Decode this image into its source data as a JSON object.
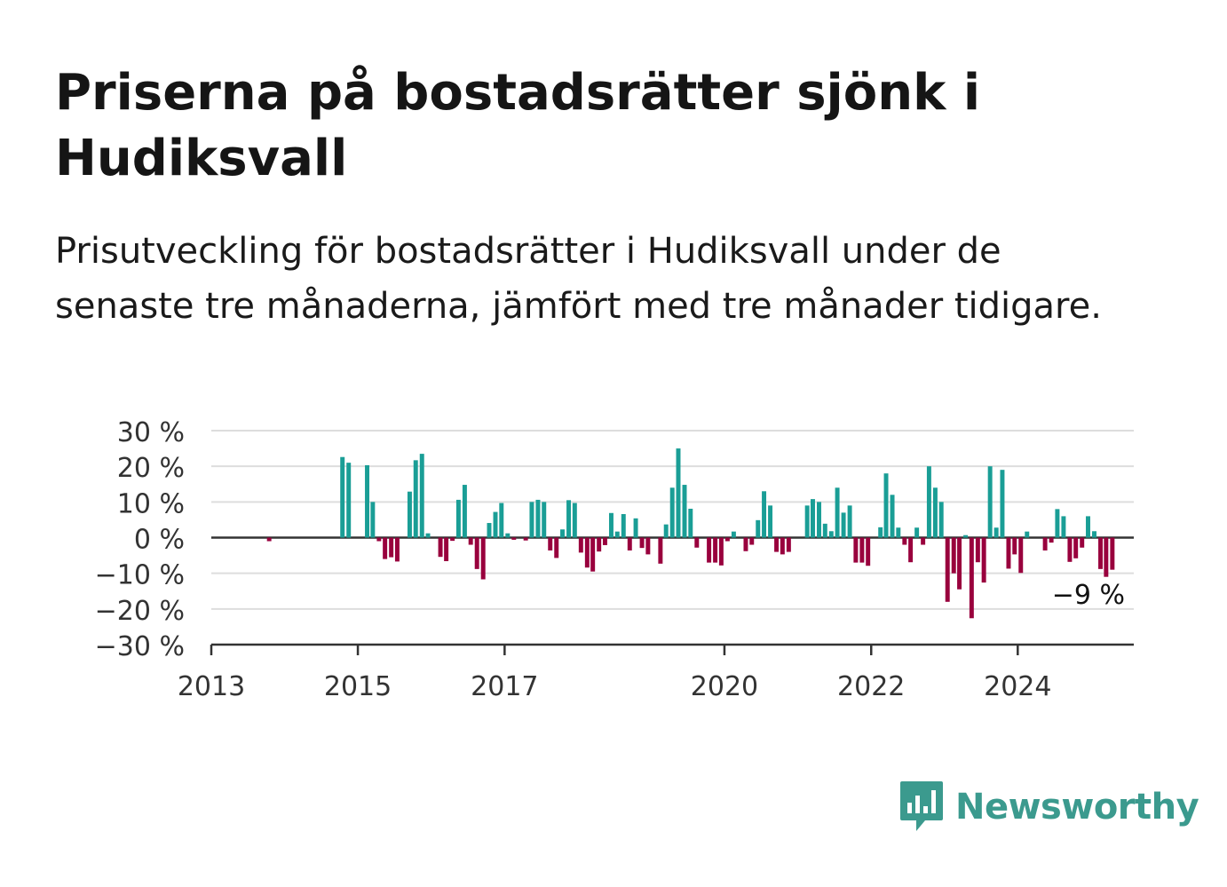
{
  "title": "Priserna på bostadsrätter sjönk i Hudiksvall",
  "subtitle": "Prisutveckling för bostadsrätter i Hudiksvall under de senaste tre månaderna, jämfört med tre månader tidigare.",
  "brand": {
    "name": "Newsworthy",
    "icon": "newsworthy-logo-icon",
    "color": "#3b9a8e"
  },
  "colors": {
    "positive": "#1a9e96",
    "negative": "#99003d",
    "grid": "#dddddd",
    "axis": "#333333"
  },
  "chart_data": {
    "type": "bar",
    "x_unit": "date (year-month)",
    "ylim": [
      -30,
      30
    ],
    "yticks": [
      30,
      20,
      10,
      0,
      -10,
      -20,
      -30
    ],
    "ytick_labels": [
      "30 %",
      "20 %",
      "10 %",
      "0 %",
      "−10 %",
      "−20 %",
      "−30 %"
    ],
    "xticks": [
      "2013",
      "2015",
      "2017",
      "2020",
      "2022",
      "2024"
    ],
    "grid": true,
    "legend": "none",
    "annotation": {
      "x": "2024-12",
      "label": "−9 %"
    },
    "x": [
      "2013-01",
      "2013-02",
      "2013-03",
      "2013-04",
      "2013-05",
      "2013-06",
      "2013-07",
      "2013-08",
      "2013-09",
      "2013-10",
      "2013-11",
      "2013-12",
      "2014-01",
      "2014-02",
      "2014-03",
      "2014-04",
      "2014-05",
      "2014-06",
      "2014-07",
      "2014-08",
      "2014-09",
      "2014-10",
      "2014-11",
      "2014-12",
      "2015-01",
      "2015-02",
      "2015-03",
      "2015-04",
      "2015-05",
      "2015-06",
      "2015-07",
      "2015-08",
      "2015-09",
      "2015-10",
      "2015-11",
      "2015-12",
      "2016-01",
      "2016-02",
      "2016-03",
      "2016-04",
      "2016-05",
      "2016-06",
      "2016-07",
      "2016-08",
      "2016-09",
      "2016-10",
      "2016-11",
      "2016-12",
      "2017-01",
      "2017-02",
      "2017-03",
      "2017-04",
      "2017-05",
      "2017-06",
      "2017-07",
      "2017-08",
      "2017-09",
      "2017-10",
      "2017-11",
      "2017-12",
      "2018-01",
      "2018-02",
      "2018-03",
      "2018-04",
      "2018-05",
      "2018-06",
      "2018-07",
      "2018-08",
      "2018-09",
      "2018-10",
      "2018-11",
      "2018-12",
      "2019-01",
      "2019-02",
      "2019-03",
      "2019-04",
      "2019-05",
      "2019-06",
      "2019-07",
      "2019-08",
      "2019-09",
      "2019-10",
      "2019-11",
      "2019-12",
      "2020-01",
      "2020-02",
      "2020-03",
      "2020-04",
      "2020-05",
      "2020-06",
      "2020-07",
      "2020-08",
      "2020-09",
      "2020-10",
      "2020-11",
      "2020-12",
      "2021-01",
      "2021-02",
      "2021-03",
      "2021-04",
      "2021-05",
      "2021-06",
      "2021-07",
      "2021-08",
      "2021-09",
      "2021-10",
      "2021-11",
      "2021-12",
      "2022-01",
      "2022-02",
      "2022-03",
      "2022-04",
      "2022-05",
      "2022-06",
      "2022-07",
      "2022-08",
      "2022-09",
      "2022-10",
      "2022-11",
      "2022-12",
      "2023-01",
      "2023-02",
      "2023-03",
      "2023-04",
      "2023-05",
      "2023-06",
      "2023-07",
      "2023-08",
      "2023-09",
      "2023-10",
      "2023-11",
      "2023-12",
      "2024-01",
      "2024-02",
      "2024-03",
      "2024-04",
      "2024-05",
      "2024-06",
      "2024-07",
      "2024-08",
      "2024-09",
      "2024-10",
      "2024-11",
      "2024-12"
    ],
    "values": [
      0,
      0,
      0,
      0,
      0,
      0,
      0,
      0,
      0,
      -1,
      0,
      0,
      0,
      0,
      0,
      0,
      0,
      0,
      0,
      0,
      0,
      22.6,
      21,
      0,
      0,
      20.3,
      10,
      -1,
      -6,
      -5.5,
      -6.7,
      0,
      12.9,
      21.7,
      23.5,
      1.2,
      0,
      -5.4,
      -6.6,
      -0.9,
      10.6,
      14.8,
      -2,
      -8.8,
      -11.7,
      4.1,
      7.2,
      9.7,
      1.2,
      -0.6,
      0,
      -0.8,
      10,
      10.6,
      10,
      -3.6,
      -5.7,
      2.3,
      10.5,
      9.7,
      -4.2,
      -8.4,
      -9.5,
      -3.9,
      -2.1,
      6.9,
      1.7,
      6.6,
      -3.6,
      5.4,
      -2.9,
      -4.7,
      0,
      -7.3,
      3.7,
      14,
      25,
      14.8,
      8.1,
      -2.8,
      0,
      -7,
      -7,
      -7.8,
      -1,
      1.7,
      0,
      -3.8,
      -2,
      4.9,
      13,
      9,
      -4,
      -4.7,
      -4,
      0,
      0,
      9,
      10.8,
      10,
      3.9,
      1.8,
      14,
      7,
      9,
      -7,
      -7,
      -7.9,
      0,
      2.9,
      18,
      12,
      2.8,
      -2,
      -6.9,
      2.8,
      -2,
      20,
      14,
      10,
      -18,
      -10,
      -14.5,
      0.7,
      -22.6,
      -6.9,
      -12.6,
      20,
      2.8,
      19,
      -8.7,
      -4.7,
      -9.9,
      1.7,
      0,
      0,
      -3.6,
      -1.4,
      8,
      6,
      -6.8,
      -5.8,
      -2.8,
      6
    ],
    "values_tail_note": "",
    "values_extra": {
      "x": [
        "2025-01",
        "2025-02",
        "2025-03",
        "2025-04"
      ],
      "values": [
        1.8,
        -8.8,
        -11,
        -9
      ]
    }
  }
}
